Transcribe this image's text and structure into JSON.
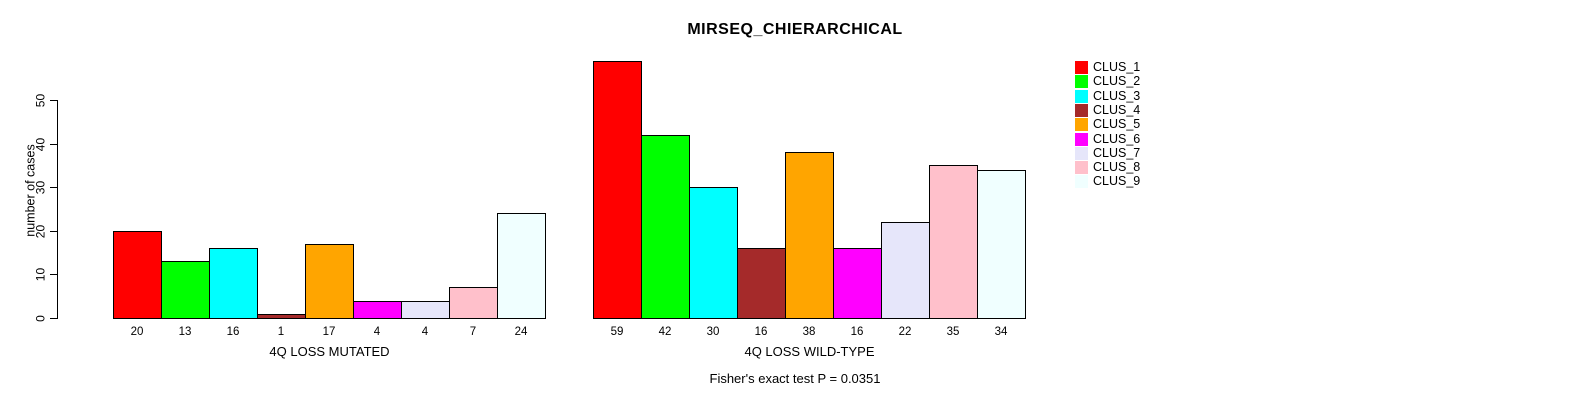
{
  "chart_data": {
    "type": "bar",
    "title": "MIRSEQ_CHIERARCHICAL",
    "ylabel": "number of cases",
    "xlabel": "",
    "ylim": [
      0,
      50
    ],
    "yticks": [
      0,
      10,
      20,
      30,
      40,
      50
    ],
    "grid": false,
    "legend_position": "right-top",
    "categories": [
      "CLUS_1",
      "CLUS_2",
      "CLUS_3",
      "CLUS_4",
      "CLUS_5",
      "CLUS_6",
      "CLUS_7",
      "CLUS_8",
      "CLUS_9"
    ],
    "colors": [
      "#FF0000",
      "#00FF00",
      "#00FFFF",
      "#A52A2A",
      "#FFA500",
      "#FF00FF",
      "#E6E6FA",
      "#FFC0CB",
      "#F0FFFF"
    ],
    "bar_border_color": "#000000",
    "groups": [
      {
        "xlabel": "4Q LOSS MUTATED",
        "values": [
          20,
          13,
          16,
          1,
          17,
          4,
          4,
          7,
          24
        ]
      },
      {
        "xlabel": "4Q LOSS WILD-TYPE",
        "values": [
          59,
          42,
          30,
          16,
          38,
          16,
          22,
          35,
          34
        ]
      }
    ],
    "bar_value_labels_visible": true,
    "annotation": "Fisher's exact test P = 0.0351"
  }
}
